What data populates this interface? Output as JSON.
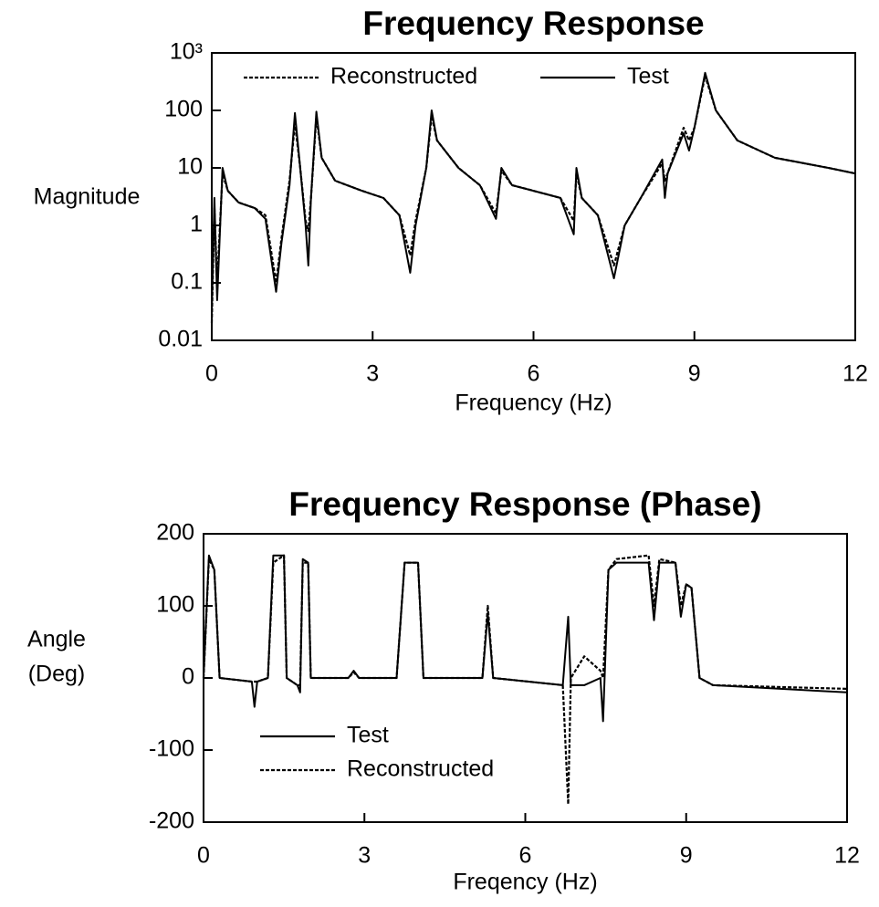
{
  "chart_data": [
    {
      "type": "line",
      "title": "Frequency Response",
      "xlabel": "Frequency (Hz)",
      "ylabel": [
        "Magnitude"
      ],
      "log_y": true,
      "grid": false,
      "legend": "top-center",
      "xlim": [
        0,
        12
      ],
      "xticks": [
        0,
        3,
        6,
        9,
        12
      ],
      "ylim": [
        0.01,
        1000
      ],
      "yticks": [
        0.01,
        0.1,
        1,
        10,
        100,
        {
          "value": 1000,
          "label": "10³"
        }
      ],
      "x": [
        0,
        0.05,
        0.1,
        0.2,
        0.3,
        0.5,
        0.8,
        1.0,
        1.1,
        1.2,
        1.3,
        1.45,
        1.55,
        1.65,
        1.75,
        1.8,
        1.85,
        1.95,
        2.05,
        2.3,
        2.8,
        3.2,
        3.5,
        3.7,
        3.8,
        4.0,
        4.1,
        4.2,
        4.6,
        5.0,
        5.3,
        5.4,
        5.6,
        6.0,
        6.5,
        6.75,
        6.8,
        6.9,
        7.2,
        7.5,
        7.7,
        8.0,
        8.4,
        8.45,
        8.5,
        8.8,
        8.9,
        9.0,
        9.2,
        9.4,
        9.8,
        10.5,
        11.5,
        12
      ],
      "series": [
        {
          "name": "Reconstructed",
          "color": "#000000",
          "dash": true,
          "values": [
            0.02,
            2,
            0.1,
            8,
            4,
            2.5,
            2,
            1.5,
            0.4,
            0.1,
            0.6,
            6,
            60,
            10,
            1.2,
            0.8,
            3,
            80,
            15,
            6,
            4,
            3,
            1.5,
            0.3,
            1.2,
            10,
            80,
            30,
            10,
            5,
            1.6,
            9,
            5,
            4,
            3,
            1.2,
            8,
            3,
            1.5,
            0.2,
            1,
            3,
            12,
            6,
            8,
            50,
            30,
            50,
            400,
            100,
            30,
            15,
            10,
            8
          ]
        },
        {
          "name": "Test",
          "color": "#000000",
          "dash": false,
          "values": [
            0.03,
            3,
            0.05,
            10,
            4,
            2.5,
            2,
            1.3,
            0.3,
            0.07,
            0.5,
            5,
            90,
            10,
            1,
            0.2,
            3,
            95,
            15,
            6,
            4,
            3,
            1.5,
            0.15,
            1,
            10,
            100,
            30,
            10,
            5,
            1.3,
            10,
            5,
            4,
            3,
            0.7,
            10,
            3,
            1.5,
            0.12,
            1,
            3,
            14,
            3,
            8,
            40,
            20,
            50,
            450,
            100,
            30,
            15,
            10,
            8
          ]
        }
      ]
    },
    {
      "type": "line",
      "title": "Frequency Response (Phase)",
      "xlabel": "Freqency (Hz)",
      "ylabel": [
        "Angle",
        "(Deg)"
      ],
      "log_y": false,
      "grid": false,
      "legend": "lower-left",
      "xlim": [
        0,
        12
      ],
      "xticks": [
        0,
        3,
        6,
        9,
        12
      ],
      "ylim": [
        -200,
        200
      ],
      "yticks": [
        -200,
        -100,
        0,
        100,
        200
      ],
      "x": [
        0,
        0.1,
        0.2,
        0.3,
        0.9,
        0.95,
        1.0,
        1.2,
        1.3,
        1.5,
        1.55,
        1.75,
        1.8,
        1.85,
        1.95,
        2.0,
        2.7,
        2.8,
        2.9,
        3.6,
        3.75,
        4.0,
        4.1,
        5.2,
        5.3,
        5.4,
        6.7,
        6.8,
        6.85,
        7.1,
        7.4,
        7.45,
        7.55,
        7.7,
        8.3,
        8.4,
        8.5,
        8.8,
        8.9,
        9.0,
        9.1,
        9.25,
        9.5,
        12
      ],
      "series": [
        {
          "name": "Test",
          "color": "#000000",
          "dash": false,
          "values": [
            0,
            170,
            150,
            0,
            -5,
            -40,
            -5,
            0,
            170,
            170,
            0,
            -10,
            -20,
            165,
            160,
            0,
            0,
            10,
            0,
            0,
            160,
            160,
            0,
            0,
            90,
            0,
            -10,
            85,
            -10,
            -10,
            0,
            -60,
            150,
            160,
            160,
            80,
            160,
            160,
            85,
            130,
            125,
            0,
            -10,
            -20
          ]
        },
        {
          "name": "Reconstructed",
          "color": "#000000",
          "dash": true,
          "values": [
            0,
            165,
            150,
            0,
            -5,
            -5,
            -5,
            0,
            160,
            170,
            0,
            -10,
            -10,
            160,
            160,
            0,
            0,
            8,
            0,
            0,
            160,
            160,
            0,
            0,
            100,
            0,
            -10,
            -175,
            0,
            30,
            10,
            0,
            150,
            165,
            170,
            100,
            165,
            160,
            100,
            130,
            125,
            0,
            -10,
            -15
          ]
        }
      ]
    }
  ]
}
